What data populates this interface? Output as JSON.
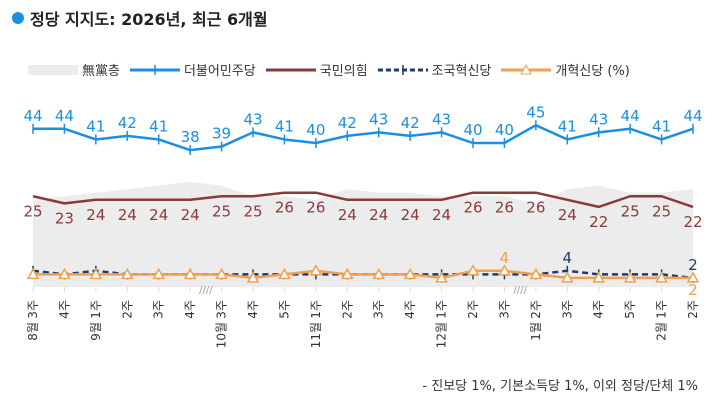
{
  "title": "정당 지지도: 2026년, 최근 6개월",
  "footnote": "- 진보당 1%, 기본소득당 1%, 이외 정당/단체 1%",
  "chart_data": {
    "type": "line",
    "title": "정당 지지도: 2026년, 최근 6개월",
    "legend_position": "top",
    "categories": [
      {
        "week": "3주",
        "month": "8월"
      },
      {
        "week": "4주",
        "month": ""
      },
      {
        "week": "1주",
        "month": "9월"
      },
      {
        "week": "2주",
        "month": ""
      },
      {
        "week": "3주",
        "month": ""
      },
      {
        "week": "4주",
        "month": ""
      },
      {
        "week": "3주",
        "month": "10월"
      },
      {
        "week": "4주",
        "month": ""
      },
      {
        "week": "5주",
        "month": ""
      },
      {
        "week": "1주",
        "month": "11월"
      },
      {
        "week": "2주",
        "month": ""
      },
      {
        "week": "3주",
        "month": ""
      },
      {
        "week": "4주",
        "month": ""
      },
      {
        "week": "1주",
        "month": "12월"
      },
      {
        "week": "2주",
        "month": ""
      },
      {
        "week": "3주",
        "month": ""
      },
      {
        "week": "2주",
        "month": "1월"
      },
      {
        "week": "3주",
        "month": ""
      },
      {
        "week": "4주",
        "month": ""
      },
      {
        "week": "5주",
        "month": ""
      },
      {
        "week": "1주",
        "month": "2월"
      },
      {
        "week": "2주",
        "month": ""
      }
    ],
    "axis_breaks_after_index": [
      5,
      15
    ],
    "break_mark": "////",
    "unit": "(%)",
    "series": [
      {
        "name": "無黨층",
        "type": "area",
        "color": "#ececec",
        "labeled": false,
        "values": [
          24,
          25,
          26,
          27,
          28,
          29,
          28,
          25,
          25,
          24,
          27,
          26,
          26,
          25,
          25,
          25,
          23,
          27,
          28,
          26,
          26,
          27
        ]
      },
      {
        "name": "더불어민주당",
        "color": "#1a8fe3",
        "marker": "plus",
        "label_pos": "above",
        "values": [
          44,
          44,
          41,
          42,
          41,
          38,
          39,
          43,
          41,
          40,
          42,
          43,
          42,
          43,
          40,
          40,
          45,
          41,
          43,
          44,
          41,
          44
        ],
        "labels": [
          44,
          44,
          41,
          42,
          41,
          38,
          39,
          43,
          41,
          40,
          42,
          43,
          42,
          43,
          40,
          40,
          45,
          41,
          43,
          44,
          41,
          44
        ]
      },
      {
        "name": "국민의힘",
        "color": "#8b3a3a",
        "marker": "none",
        "label_pos": "below",
        "values": [
          25,
          23,
          24,
          24,
          24,
          24,
          25,
          25,
          26,
          26,
          24,
          24,
          24,
          24,
          26,
          26,
          26,
          24,
          22,
          25,
          25,
          22
        ],
        "labels": [
          25,
          23,
          24,
          24,
          24,
          24,
          25,
          25,
          26,
          26,
          24,
          24,
          24,
          24,
          26,
          26,
          26,
          24,
          22,
          25,
          25,
          22
        ]
      },
      {
        "name": "조국혁신당",
        "color": "#1f3b6e",
        "marker": "plus",
        "dashed": true,
        "label_pos": "above",
        "values": [
          4,
          3,
          4,
          3,
          3,
          3,
          3,
          3,
          3,
          3,
          3,
          3,
          3,
          3,
          3,
          3,
          3,
          4,
          3,
          3,
          3,
          2
        ],
        "labels": [
          null,
          null,
          null,
          null,
          null,
          null,
          null,
          null,
          null,
          null,
          null,
          null,
          null,
          null,
          null,
          null,
          null,
          4,
          null,
          null,
          null,
          2
        ]
      },
      {
        "name": "개혁신당 (%)",
        "color": "#f0a050",
        "marker": "triangle",
        "label_pos": "above",
        "values": [
          3,
          3,
          3,
          3,
          3,
          3,
          3,
          2,
          3,
          4,
          3,
          3,
          3,
          2,
          4,
          4,
          3,
          2,
          2,
          2,
          2,
          2
        ],
        "labels": [
          null,
          null,
          null,
          null,
          null,
          null,
          null,
          null,
          null,
          null,
          null,
          null,
          null,
          null,
          null,
          4,
          null,
          null,
          null,
          null,
          null,
          2
        ]
      }
    ]
  }
}
